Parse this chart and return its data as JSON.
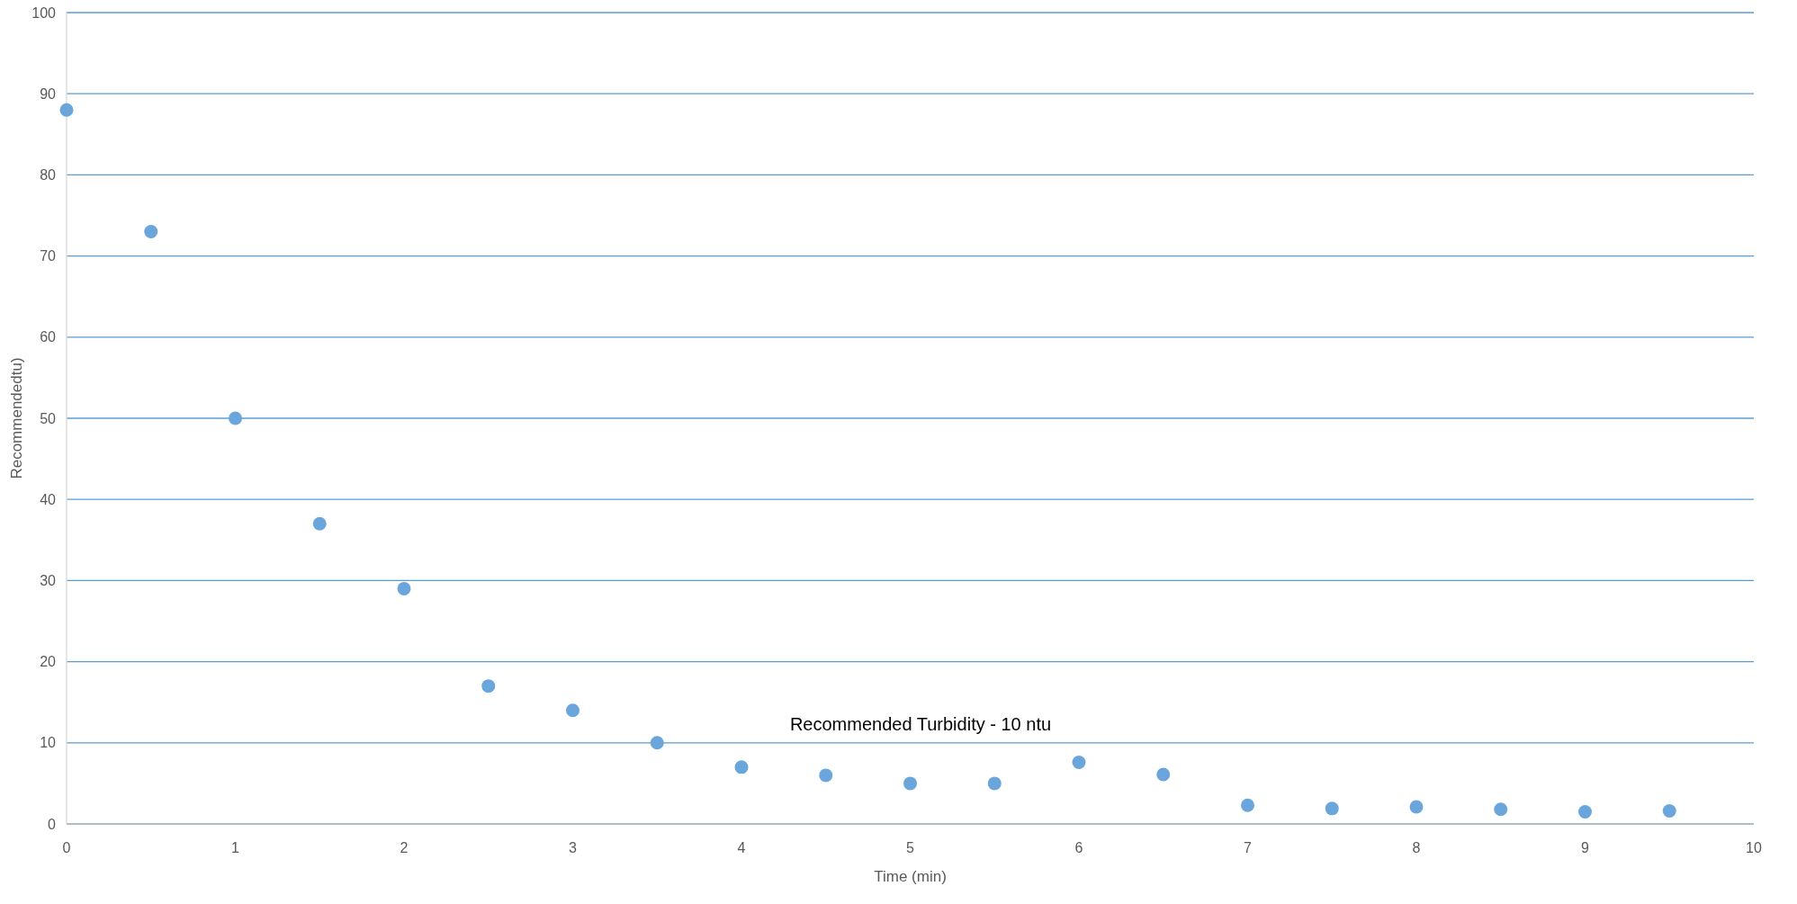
{
  "chart_data": {
    "type": "scatter",
    "xlabel": "Time (min)",
    "ylabel": "Recommendedtu)",
    "x": [
      0,
      0.5,
      1,
      1.5,
      2,
      2.5,
      3,
      3.5,
      4,
      4.5,
      5,
      5.5,
      6,
      6.5,
      7,
      7.5,
      8,
      8.5,
      9,
      9.5
    ],
    "series": [
      {
        "color": "#6aa6dc",
        "values": [
          88,
          73,
          50,
          37,
          29,
          17,
          14,
          10,
          7,
          6,
          5,
          5,
          7.6,
          6.1,
          2.3,
          1.9,
          2.1,
          1.8,
          1.5,
          1.6
        ]
      }
    ],
    "xlim": [
      0,
      10
    ],
    "xticks": [
      0,
      1,
      2,
      3,
      4,
      5,
      6,
      7,
      8,
      9,
      10
    ],
    "ylim": [
      0,
      100
    ],
    "yticks": [
      0,
      10,
      20,
      30,
      40,
      50,
      60,
      70,
      80,
      90,
      100
    ],
    "grid": "y",
    "marker": "circle",
    "annotations": [
      "Recommended Turbidity - 10 ntu"
    ]
  }
}
